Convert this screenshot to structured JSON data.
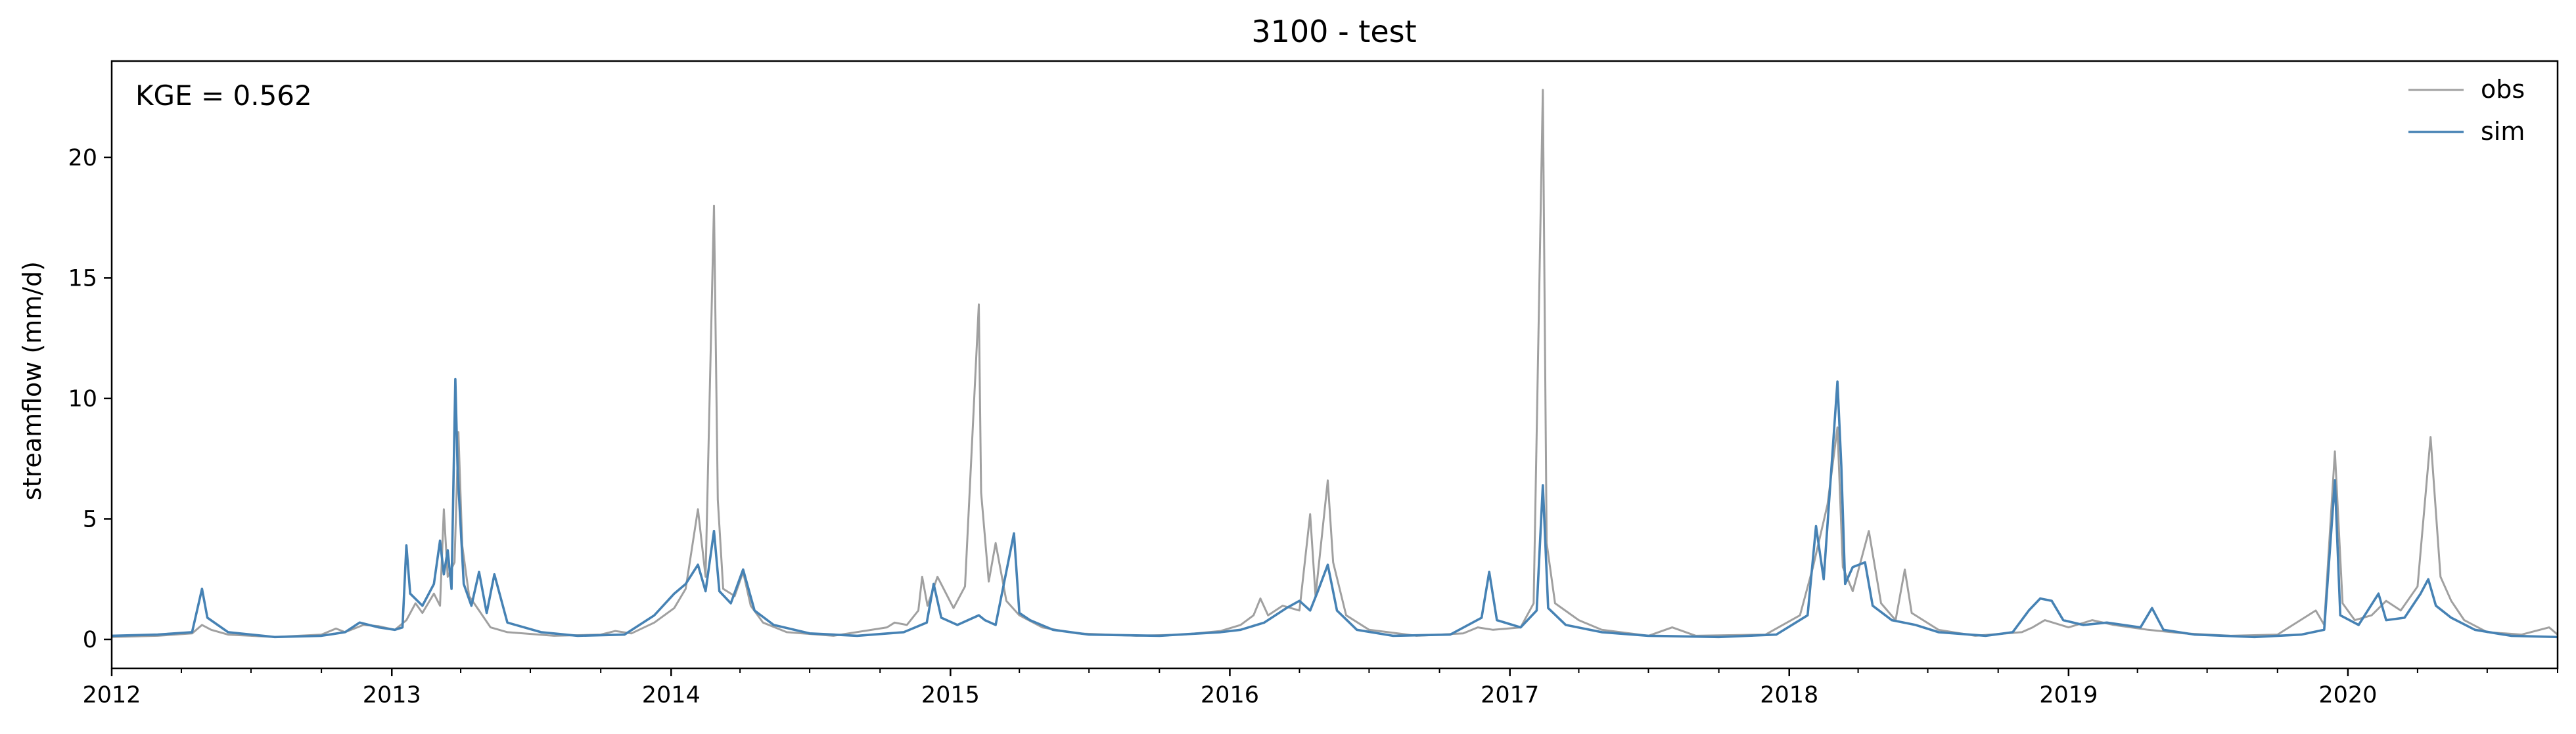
{
  "chart_data": {
    "type": "line",
    "title": "3100 - test",
    "ylabel": "streamflow (mm/d)",
    "xlabel": "",
    "annotation": "KGE = 0.562",
    "legend_position": "top-right",
    "grid": false,
    "xlim": [
      "2012-01-01",
      "2020-10-01"
    ],
    "ylim": [
      -1.2,
      24
    ],
    "x_ticks": [
      "2012",
      "2013",
      "2014",
      "2015",
      "2016",
      "2017",
      "2018",
      "2019",
      "2020"
    ],
    "y_ticks": [
      0,
      5,
      10,
      15,
      20
    ],
    "series": [
      {
        "name": "obs",
        "color": "#a0a0a0",
        "points": [
          [
            "2012-01-01",
            0.1
          ],
          [
            "2012-03-01",
            0.15
          ],
          [
            "2012-04-15",
            0.25
          ],
          [
            "2012-04-28",
            0.6
          ],
          [
            "2012-05-10",
            0.4
          ],
          [
            "2012-06-01",
            0.2
          ],
          [
            "2012-08-01",
            0.1
          ],
          [
            "2012-10-01",
            0.2
          ],
          [
            "2012-10-20",
            0.45
          ],
          [
            "2012-11-01",
            0.3
          ],
          [
            "2012-11-25",
            0.6
          ],
          [
            "2012-12-15",
            0.55
          ],
          [
            "2013-01-05",
            0.4
          ],
          [
            "2013-01-20",
            0.8
          ],
          [
            "2013-02-01",
            1.5
          ],
          [
            "2013-02-10",
            1.1
          ],
          [
            "2013-02-25",
            1.9
          ],
          [
            "2013-03-05",
            1.4
          ],
          [
            "2013-03-10",
            5.4
          ],
          [
            "2013-03-15",
            2.6
          ],
          [
            "2013-03-24",
            3.2
          ],
          [
            "2013-03-29",
            8.6
          ],
          [
            "2013-04-03",
            3.9
          ],
          [
            "2013-04-12",
            1.8
          ],
          [
            "2013-04-25",
            1.2
          ],
          [
            "2013-05-10",
            0.5
          ],
          [
            "2013-06-01",
            0.3
          ],
          [
            "2013-08-01",
            0.15
          ],
          [
            "2013-10-01",
            0.2
          ],
          [
            "2013-10-20",
            0.35
          ],
          [
            "2013-11-10",
            0.25
          ],
          [
            "2013-12-10",
            0.7
          ],
          [
            "2014-01-05",
            1.3
          ],
          [
            "2014-01-20",
            2.1
          ],
          [
            "2014-02-05",
            5.4
          ],
          [
            "2014-02-15",
            2.6
          ],
          [
            "2014-02-26",
            18.0
          ],
          [
            "2014-03-03",
            5.8
          ],
          [
            "2014-03-10",
            2.1
          ],
          [
            "2014-03-25",
            1.8
          ],
          [
            "2014-04-05",
            2.8
          ],
          [
            "2014-04-15",
            1.4
          ],
          [
            "2014-05-01",
            0.7
          ],
          [
            "2014-06-01",
            0.3
          ],
          [
            "2014-08-01",
            0.15
          ],
          [
            "2014-10-10",
            0.5
          ],
          [
            "2014-10-20",
            0.7
          ],
          [
            "2014-11-05",
            0.6
          ],
          [
            "2014-11-20",
            1.2
          ],
          [
            "2014-11-25",
            2.6
          ],
          [
            "2014-12-02",
            1.4
          ],
          [
            "2014-12-15",
            2.6
          ],
          [
            "2015-01-05",
            1.3
          ],
          [
            "2015-01-20",
            2.2
          ],
          [
            "2015-02-07",
            13.9
          ],
          [
            "2015-02-10",
            6.1
          ],
          [
            "2015-02-20",
            2.4
          ],
          [
            "2015-03-01",
            4.0
          ],
          [
            "2015-03-15",
            1.6
          ],
          [
            "2015-04-01",
            1.0
          ],
          [
            "2015-05-01",
            0.5
          ],
          [
            "2015-06-15",
            0.25
          ],
          [
            "2015-09-01",
            0.15
          ],
          [
            "2015-11-01",
            0.2
          ],
          [
            "2015-12-20",
            0.35
          ],
          [
            "2016-01-15",
            0.6
          ],
          [
            "2016-02-01",
            1.0
          ],
          [
            "2016-02-10",
            1.7
          ],
          [
            "2016-02-20",
            1.0
          ],
          [
            "2016-03-10",
            1.4
          ],
          [
            "2016-04-01",
            1.2
          ],
          [
            "2016-04-15",
            5.2
          ],
          [
            "2016-04-22",
            1.8
          ],
          [
            "2016-05-08",
            6.6
          ],
          [
            "2016-05-15",
            3.2
          ],
          [
            "2016-06-01",
            1.0
          ],
          [
            "2016-07-01",
            0.4
          ],
          [
            "2016-09-01",
            0.15
          ],
          [
            "2016-11-01",
            0.25
          ],
          [
            "2016-11-20",
            0.5
          ],
          [
            "2016-12-10",
            0.4
          ],
          [
            "2017-01-15",
            0.5
          ],
          [
            "2017-02-01",
            1.5
          ],
          [
            "2017-02-13",
            22.8
          ],
          [
            "2017-02-18",
            4.0
          ],
          [
            "2017-03-01",
            1.5
          ],
          [
            "2017-04-01",
            0.8
          ],
          [
            "2017-05-01",
            0.4
          ],
          [
            "2017-07-01",
            0.15
          ],
          [
            "2017-08-01",
            0.5
          ],
          [
            "2017-09-01",
            0.15
          ],
          [
            "2017-12-01",
            0.2
          ],
          [
            "2018-01-15",
            1.0
          ],
          [
            "2018-02-01",
            3.0
          ],
          [
            "2018-02-20",
            5.6
          ],
          [
            "2018-03-05",
            8.8
          ],
          [
            "2018-03-12",
            3.0
          ],
          [
            "2018-03-25",
            2.0
          ],
          [
            "2018-04-15",
            4.5
          ],
          [
            "2018-05-01",
            1.5
          ],
          [
            "2018-05-20",
            0.8
          ],
          [
            "2018-06-01",
            2.9
          ],
          [
            "2018-06-10",
            1.1
          ],
          [
            "2018-07-15",
            0.4
          ],
          [
            "2018-09-01",
            0.15
          ],
          [
            "2018-11-01",
            0.3
          ],
          [
            "2018-11-15",
            0.5
          ],
          [
            "2018-12-01",
            0.8
          ],
          [
            "2019-01-01",
            0.5
          ],
          [
            "2019-02-01",
            0.8
          ],
          [
            "2019-03-01",
            0.6
          ],
          [
            "2019-04-15",
            0.4
          ],
          [
            "2019-06-01",
            0.25
          ],
          [
            "2019-08-01",
            0.15
          ],
          [
            "2019-10-01",
            0.2
          ],
          [
            "2019-11-20",
            1.2
          ],
          [
            "2019-12-01",
            0.6
          ],
          [
            "2019-12-15",
            7.8
          ],
          [
            "2019-12-25",
            1.5
          ],
          [
            "2020-01-10",
            0.8
          ],
          [
            "2020-02-01",
            1.0
          ],
          [
            "2020-02-20",
            1.6
          ],
          [
            "2020-03-10",
            1.2
          ],
          [
            "2020-04-01",
            2.2
          ],
          [
            "2020-04-18",
            8.4
          ],
          [
            "2020-05-01",
            2.6
          ],
          [
            "2020-05-15",
            1.6
          ],
          [
            "2020-06-01",
            0.8
          ],
          [
            "2020-07-01",
            0.3
          ],
          [
            "2020-08-15",
            0.2
          ],
          [
            "2020-09-20",
            0.5
          ],
          [
            "2020-10-01",
            0.2
          ]
        ]
      },
      {
        "name": "sim",
        "color": "#4682b4",
        "points": [
          [
            "2012-01-01",
            0.15
          ],
          [
            "2012-03-01",
            0.2
          ],
          [
            "2012-04-15",
            0.3
          ],
          [
            "2012-04-28",
            2.1
          ],
          [
            "2012-05-05",
            0.9
          ],
          [
            "2012-06-01",
            0.3
          ],
          [
            "2012-08-01",
            0.1
          ],
          [
            "2012-10-01",
            0.15
          ],
          [
            "2012-11-01",
            0.3
          ],
          [
            "2012-11-20",
            0.7
          ],
          [
            "2012-12-15",
            0.5
          ],
          [
            "2013-01-05",
            0.4
          ],
          [
            "2013-01-15",
            0.5
          ],
          [
            "2013-01-20",
            3.9
          ],
          [
            "2013-01-25",
            1.9
          ],
          [
            "2013-02-10",
            1.4
          ],
          [
            "2013-02-25",
            2.3
          ],
          [
            "2013-03-05",
            4.1
          ],
          [
            "2013-03-10",
            2.7
          ],
          [
            "2013-03-15",
            3.7
          ],
          [
            "2013-03-20",
            2.1
          ],
          [
            "2013-03-25",
            10.8
          ],
          [
            "2013-03-28",
            7.0
          ],
          [
            "2013-04-05",
            2.3
          ],
          [
            "2013-04-15",
            1.4
          ],
          [
            "2013-04-25",
            2.8
          ],
          [
            "2013-05-05",
            1.1
          ],
          [
            "2013-05-15",
            2.7
          ],
          [
            "2013-06-01",
            0.7
          ],
          [
            "2013-07-15",
            0.3
          ],
          [
            "2013-09-01",
            0.15
          ],
          [
            "2013-11-01",
            0.2
          ],
          [
            "2013-12-10",
            1.0
          ],
          [
            "2014-01-05",
            1.9
          ],
          [
            "2014-01-20",
            2.3
          ],
          [
            "2014-02-05",
            3.1
          ],
          [
            "2014-02-15",
            2.0
          ],
          [
            "2014-02-26",
            4.5
          ],
          [
            "2014-03-05",
            2.0
          ],
          [
            "2014-03-20",
            1.5
          ],
          [
            "2014-04-05",
            2.9
          ],
          [
            "2014-04-20",
            1.2
          ],
          [
            "2014-05-15",
            0.6
          ],
          [
            "2014-07-01",
            0.25
          ],
          [
            "2014-09-01",
            0.15
          ],
          [
            "2014-11-01",
            0.3
          ],
          [
            "2014-12-01",
            0.7
          ],
          [
            "2014-12-10",
            2.3
          ],
          [
            "2014-12-20",
            0.9
          ],
          [
            "2015-01-10",
            0.6
          ],
          [
            "2015-02-07",
            1.0
          ],
          [
            "2015-02-15",
            0.8
          ],
          [
            "2015-03-01",
            0.6
          ],
          [
            "2015-03-25",
            4.4
          ],
          [
            "2015-04-01",
            1.1
          ],
          [
            "2015-04-15",
            0.8
          ],
          [
            "2015-05-15",
            0.4
          ],
          [
            "2015-07-01",
            0.2
          ],
          [
            "2015-10-01",
            0.15
          ],
          [
            "2015-12-20",
            0.3
          ],
          [
            "2016-01-15",
            0.4
          ],
          [
            "2016-02-15",
            0.7
          ],
          [
            "2016-03-15",
            1.3
          ],
          [
            "2016-04-01",
            1.6
          ],
          [
            "2016-04-15",
            1.2
          ],
          [
            "2016-04-25",
            2.0
          ],
          [
            "2016-05-08",
            3.1
          ],
          [
            "2016-05-20",
            1.2
          ],
          [
            "2016-06-15",
            0.4
          ],
          [
            "2016-08-01",
            0.15
          ],
          [
            "2016-10-15",
            0.2
          ],
          [
            "2016-11-25",
            0.9
          ],
          [
            "2016-12-05",
            2.8
          ],
          [
            "2016-12-15",
            0.8
          ],
          [
            "2017-01-15",
            0.5
          ],
          [
            "2017-02-05",
            1.2
          ],
          [
            "2017-02-13",
            6.4
          ],
          [
            "2017-02-20",
            1.3
          ],
          [
            "2017-03-15",
            0.6
          ],
          [
            "2017-05-01",
            0.3
          ],
          [
            "2017-07-01",
            0.15
          ],
          [
            "2017-10-01",
            0.1
          ],
          [
            "2017-12-15",
            0.2
          ],
          [
            "2018-01-25",
            1.0
          ],
          [
            "2018-02-05",
            4.7
          ],
          [
            "2018-02-15",
            2.5
          ],
          [
            "2018-03-05",
            10.7
          ],
          [
            "2018-03-10",
            7.2
          ],
          [
            "2018-03-15",
            2.3
          ],
          [
            "2018-03-25",
            3.0
          ],
          [
            "2018-04-10",
            3.2
          ],
          [
            "2018-04-20",
            1.4
          ],
          [
            "2018-05-15",
            0.8
          ],
          [
            "2018-06-15",
            0.6
          ],
          [
            "2018-07-15",
            0.3
          ],
          [
            "2018-09-15",
            0.15
          ],
          [
            "2018-10-20",
            0.3
          ],
          [
            "2018-11-10",
            1.2
          ],
          [
            "2018-11-25",
            1.7
          ],
          [
            "2018-12-10",
            1.6
          ],
          [
            "2018-12-25",
            0.8
          ],
          [
            "2019-01-20",
            0.6
          ],
          [
            "2019-02-20",
            0.7
          ],
          [
            "2019-04-05",
            0.5
          ],
          [
            "2019-04-20",
            1.3
          ],
          [
            "2019-05-05",
            0.4
          ],
          [
            "2019-06-15",
            0.2
          ],
          [
            "2019-09-01",
            0.1
          ],
          [
            "2019-11-01",
            0.2
          ],
          [
            "2019-12-01",
            0.4
          ],
          [
            "2019-12-15",
            6.6
          ],
          [
            "2019-12-22",
            1.0
          ],
          [
            "2020-01-15",
            0.6
          ],
          [
            "2020-02-10",
            1.9
          ],
          [
            "2020-02-20",
            0.8
          ],
          [
            "2020-03-15",
            0.9
          ],
          [
            "2020-04-05",
            1.9
          ],
          [
            "2020-04-15",
            2.5
          ],
          [
            "2020-04-25",
            1.4
          ],
          [
            "2020-05-15",
            0.9
          ],
          [
            "2020-06-15",
            0.4
          ],
          [
            "2020-08-01",
            0.15
          ],
          [
            "2020-10-01",
            0.1
          ]
        ]
      }
    ]
  }
}
